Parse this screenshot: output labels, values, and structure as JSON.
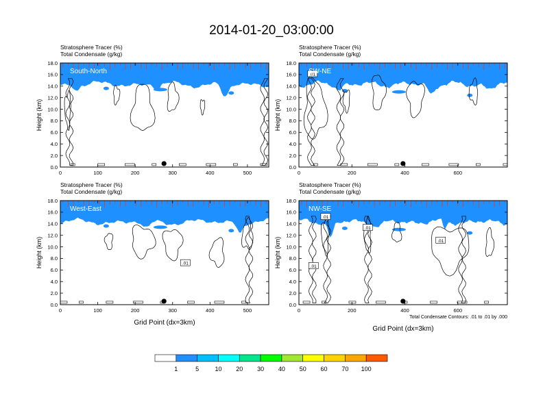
{
  "title": "2014-01-20_03:00:00",
  "chart_data": [
    {
      "type": "heatmap",
      "label_tracer": "Stratosphere Tracer   (%)",
      "label_condensate": "Total Condensate   (g/kg)",
      "cross_section": "South-North",
      "ylabel": "Height (km)",
      "xlabel": "",
      "x_range": [
        0,
        557
      ],
      "x_ticks": [
        "0",
        "100",
        "200",
        "300",
        "400",
        "500"
      ],
      "ylim": [
        0,
        18
      ],
      "y_ticks": [
        "0.0",
        "2.0",
        "4.0",
        "6.0",
        "8.0",
        "10.0",
        "12.0",
        "14.0",
        "16.0",
        "18.0"
      ],
      "marker_x": 277,
      "contour_labels": []
    },
    {
      "type": "heatmap",
      "label_tracer": "Stratosphere Tracer   (%)",
      "label_condensate": "Total Condensate   (g/kg)",
      "cross_section": "SW-NE",
      "ylabel": "Height (km)",
      "xlabel": "",
      "x_range": [
        0,
        787
      ],
      "x_ticks": [
        "0",
        "200",
        "400",
        "600"
      ],
      "ylim": [
        0,
        18
      ],
      "y_ticks": [
        "0.0",
        "2.0",
        "4.0",
        "6.0",
        "8.0",
        "10.0",
        "12.0",
        "14.0",
        "16.0",
        "18.0"
      ],
      "marker_x": 393,
      "contour_labels": [
        ".01"
      ]
    },
    {
      "type": "heatmap",
      "label_tracer": "Stratosphere Tracer   (%)",
      "label_condensate": "Total Condensate   (g/kg)",
      "cross_section": "West-East",
      "ylabel": "Height (km)",
      "xlabel": "Grid Point (dx=3km)",
      "x_range": [
        0,
        557
      ],
      "x_ticks": [
        "0",
        "100",
        "200",
        "300",
        "400",
        "500"
      ],
      "ylim": [
        0,
        18
      ],
      "y_ticks": [
        "0.0",
        "2.0",
        "4.0",
        "6.0",
        "8.0",
        "10.0",
        "12.0",
        "14.0",
        "16.0",
        "18.0"
      ],
      "marker_x": 277,
      "contour_labels": [
        ".01"
      ]
    },
    {
      "type": "heatmap",
      "label_tracer": "Stratosphere Tracer   (%)",
      "label_condensate": "Total Condensate   (g/kg)",
      "cross_section": "NW-SE",
      "ylabel": "Height (km)",
      "xlabel": "Grid Point (dx=3km)",
      "x_range": [
        0,
        787
      ],
      "x_ticks": [
        "0",
        "200",
        "400",
        "600"
      ],
      "ylim": [
        0,
        18
      ],
      "y_ticks": [
        "0.0",
        "2.0",
        "4.0",
        "6.0",
        "8.0",
        "10.0",
        "12.0",
        "14.0",
        "16.0",
        "18.0"
      ],
      "marker_x": 393,
      "contour_labels": [
        ".01",
        ".01",
        ".01",
        ".01"
      ],
      "footnote": "Total Condensate Contours: .01 to .01 by .000"
    }
  ],
  "colorbar": {
    "levels": [
      "1",
      "5",
      "10",
      "20",
      "30",
      "40",
      "50",
      "60",
      "70",
      "100"
    ],
    "colors": [
      "#ffffff",
      "#1e90ff",
      "#00bfff",
      "#00ffff",
      "#00e68c",
      "#00ff00",
      "#a0e632",
      "#ffff00",
      "#ffd200",
      "#ffa500",
      "#ff5a00",
      "#ff0000"
    ]
  }
}
